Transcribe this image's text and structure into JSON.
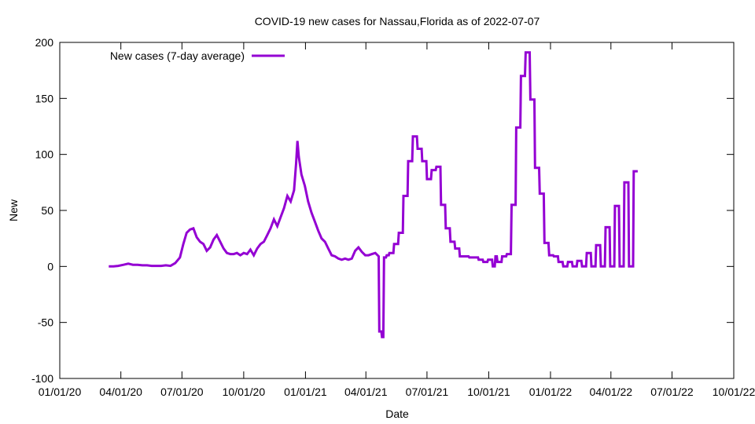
{
  "chart_data": {
    "type": "line",
    "title": "COVID-19 new cases for Nassau,Florida as of 2022-07-07",
    "xlabel": "Date",
    "ylabel": "New",
    "xlim": [
      "2020-01-01",
      "2022-10-01"
    ],
    "ylim": [
      -100,
      200
    ],
    "x_ticks": [
      "01/01/20",
      "04/01/20",
      "07/01/20",
      "10/01/20",
      "01/01/21",
      "04/01/21",
      "07/01/21",
      "10/01/21",
      "01/01/22",
      "04/01/22",
      "07/01/22",
      "10/01/22"
    ],
    "x_tick_dates": [
      "2020-01-01",
      "2020-04-01",
      "2020-07-01",
      "2020-10-01",
      "2021-01-01",
      "2021-04-01",
      "2021-07-01",
      "2021-10-01",
      "2022-01-01",
      "2022-04-01",
      "2022-07-01",
      "2022-10-01"
    ],
    "y_ticks": [
      -100,
      -50,
      0,
      50,
      100,
      150,
      200
    ],
    "grid": false,
    "legend": "top-left",
    "series": [
      {
        "name": "New cases (7-day average)",
        "color": "#9400d3",
        "points": [
          [
            "2020-03-14",
            0
          ],
          [
            "2020-03-21",
            0
          ],
          [
            "2020-03-28",
            0.5
          ],
          [
            "2020-04-05",
            1.5
          ],
          [
            "2020-04-12",
            2.5
          ],
          [
            "2020-04-19",
            1.5
          ],
          [
            "2020-04-26",
            1.5
          ],
          [
            "2020-05-03",
            1
          ],
          [
            "2020-05-10",
            1
          ],
          [
            "2020-05-17",
            0.5
          ],
          [
            "2020-05-24",
            0.5
          ],
          [
            "2020-05-31",
            0.5
          ],
          [
            "2020-06-07",
            1
          ],
          [
            "2020-06-14",
            0.5
          ],
          [
            "2020-06-21",
            3
          ],
          [
            "2020-06-28",
            8
          ],
          [
            "2020-07-03",
            20
          ],
          [
            "2020-07-08",
            30
          ],
          [
            "2020-07-13",
            33
          ],
          [
            "2020-07-18",
            34
          ],
          [
            "2020-07-23",
            26
          ],
          [
            "2020-07-28",
            22
          ],
          [
            "2020-08-02",
            20
          ],
          [
            "2020-08-07",
            14
          ],
          [
            "2020-08-12",
            17
          ],
          [
            "2020-08-17",
            24
          ],
          [
            "2020-08-22",
            28
          ],
          [
            "2020-08-27",
            22
          ],
          [
            "2020-09-01",
            16
          ],
          [
            "2020-09-06",
            12
          ],
          [
            "2020-09-11",
            11
          ],
          [
            "2020-09-16",
            11
          ],
          [
            "2020-09-21",
            12
          ],
          [
            "2020-09-26",
            10
          ],
          [
            "2020-10-01",
            12
          ],
          [
            "2020-10-06",
            11
          ],
          [
            "2020-10-11",
            15
          ],
          [
            "2020-10-16",
            10
          ],
          [
            "2020-10-21",
            16
          ],
          [
            "2020-10-26",
            20
          ],
          [
            "2020-10-31",
            22
          ],
          [
            "2020-11-05",
            28
          ],
          [
            "2020-11-10",
            34
          ],
          [
            "2020-11-15",
            42
          ],
          [
            "2020-11-20",
            36
          ],
          [
            "2020-11-25",
            44
          ],
          [
            "2020-11-30",
            52
          ],
          [
            "2020-12-05",
            63
          ],
          [
            "2020-12-10",
            58
          ],
          [
            "2020-12-15",
            68
          ],
          [
            "2020-12-18",
            92
          ],
          [
            "2020-12-20",
            112
          ],
          [
            "2020-12-22",
            98
          ],
          [
            "2020-12-26",
            82
          ],
          [
            "2020-12-31",
            72
          ],
          [
            "2021-01-05",
            58
          ],
          [
            "2021-01-10",
            48
          ],
          [
            "2021-01-15",
            40
          ],
          [
            "2021-01-20",
            32
          ],
          [
            "2021-01-25",
            25
          ],
          [
            "2021-01-30",
            22
          ],
          [
            "2021-02-04",
            16
          ],
          [
            "2021-02-09",
            10
          ],
          [
            "2021-02-14",
            9
          ],
          [
            "2021-02-19",
            7
          ],
          [
            "2021-02-24",
            6
          ],
          [
            "2021-03-01",
            7
          ],
          [
            "2021-03-06",
            6
          ],
          [
            "2021-03-11",
            7
          ],
          [
            "2021-03-16",
            14
          ],
          [
            "2021-03-21",
            17
          ],
          [
            "2021-03-26",
            13
          ],
          [
            "2021-03-31",
            10
          ],
          [
            "2021-04-05",
            10
          ],
          [
            "2021-04-10",
            11
          ],
          [
            "2021-04-15",
            12
          ],
          [
            "2021-04-20",
            9
          ],
          [
            "2021-04-21",
            -58
          ],
          [
            "2021-04-24",
            -58
          ],
          [
            "2021-04-25",
            -63
          ],
          [
            "2021-04-27",
            -63
          ],
          [
            "2021-04-28",
            8
          ],
          [
            "2021-05-01",
            8
          ],
          [
            "2021-05-02",
            10
          ],
          [
            "2021-05-05",
            10
          ],
          [
            "2021-05-06",
            12
          ],
          [
            "2021-05-12",
            12
          ],
          [
            "2021-05-13",
            20
          ],
          [
            "2021-05-19",
            20
          ],
          [
            "2021-05-20",
            30
          ],
          [
            "2021-05-26",
            30
          ],
          [
            "2021-05-27",
            63
          ],
          [
            "2021-06-02",
            63
          ],
          [
            "2021-06-03",
            94
          ],
          [
            "2021-06-09",
            94
          ],
          [
            "2021-06-10",
            116
          ],
          [
            "2021-06-16",
            116
          ],
          [
            "2021-06-17",
            105
          ],
          [
            "2021-06-23",
            105
          ],
          [
            "2021-06-24",
            94
          ],
          [
            "2021-06-30",
            94
          ],
          [
            "2021-07-01",
            78
          ],
          [
            "2021-07-07",
            78
          ],
          [
            "2021-07-08",
            86
          ],
          [
            "2021-07-14",
            86
          ],
          [
            "2021-07-15",
            89
          ],
          [
            "2021-07-21",
            89
          ],
          [
            "2021-07-22",
            55
          ],
          [
            "2021-07-28",
            55
          ],
          [
            "2021-07-29",
            34
          ],
          [
            "2021-08-04",
            34
          ],
          [
            "2021-08-05",
            22
          ],
          [
            "2021-08-11",
            22
          ],
          [
            "2021-08-12",
            16
          ],
          [
            "2021-08-18",
            16
          ],
          [
            "2021-08-19",
            9
          ],
          [
            "2021-09-01",
            9
          ],
          [
            "2021-09-02",
            8
          ],
          [
            "2021-09-15",
            8
          ],
          [
            "2021-09-16",
            6
          ],
          [
            "2021-09-22",
            6
          ],
          [
            "2021-09-23",
            4
          ],
          [
            "2021-09-29",
            4
          ],
          [
            "2021-09-30",
            6
          ],
          [
            "2021-10-06",
            6
          ],
          [
            "2021-10-07",
            0
          ],
          [
            "2021-10-10",
            0
          ],
          [
            "2021-10-11",
            9
          ],
          [
            "2021-10-13",
            9
          ],
          [
            "2021-10-14",
            4
          ],
          [
            "2021-10-20",
            4
          ],
          [
            "2021-10-21",
            9
          ],
          [
            "2021-10-27",
            9
          ],
          [
            "2021-10-28",
            11
          ],
          [
            "2021-11-03",
            11
          ],
          [
            "2021-11-04",
            55
          ],
          [
            "2021-11-10",
            55
          ],
          [
            "2021-11-11",
            124
          ],
          [
            "2021-11-17",
            124
          ],
          [
            "2021-11-18",
            170
          ],
          [
            "2021-11-24",
            170
          ],
          [
            "2021-11-25",
            191
          ],
          [
            "2021-12-01",
            191
          ],
          [
            "2021-12-02",
            149
          ],
          [
            "2021-12-08",
            149
          ],
          [
            "2021-12-09",
            88
          ],
          [
            "2021-12-15",
            88
          ],
          [
            "2021-12-16",
            65
          ],
          [
            "2021-12-22",
            65
          ],
          [
            "2021-12-23",
            21
          ],
          [
            "2021-12-29",
            21
          ],
          [
            "2021-12-30",
            10
          ],
          [
            "2022-01-05",
            10
          ],
          [
            "2022-01-06",
            9
          ],
          [
            "2022-01-12",
            9
          ],
          [
            "2022-01-13",
            4
          ],
          [
            "2022-01-19",
            4
          ],
          [
            "2022-01-20",
            0
          ],
          [
            "2022-01-26",
            0
          ],
          [
            "2022-01-27",
            4
          ],
          [
            "2022-02-02",
            4
          ],
          [
            "2022-02-03",
            0
          ],
          [
            "2022-02-09",
            0
          ],
          [
            "2022-02-10",
            5
          ],
          [
            "2022-02-16",
            5
          ],
          [
            "2022-02-17",
            0
          ],
          [
            "2022-02-23",
            0
          ],
          [
            "2022-02-24",
            12
          ],
          [
            "2022-03-02",
            12
          ],
          [
            "2022-03-03",
            0
          ],
          [
            "2022-03-09",
            0
          ],
          [
            "2022-03-10",
            19
          ],
          [
            "2022-03-16",
            19
          ],
          [
            "2022-03-17",
            0
          ],
          [
            "2022-03-23",
            0
          ],
          [
            "2022-03-24",
            35
          ],
          [
            "2022-03-30",
            35
          ],
          [
            "2022-03-31",
            0
          ],
          [
            "2022-04-06",
            0
          ],
          [
            "2022-04-07",
            54
          ],
          [
            "2022-04-13",
            54
          ],
          [
            "2022-04-14",
            0
          ],
          [
            "2022-04-20",
            0
          ],
          [
            "2022-04-21",
            75
          ],
          [
            "2022-04-27",
            75
          ],
          [
            "2022-04-28",
            0
          ],
          [
            "2022-05-04",
            0
          ],
          [
            "2022-05-05",
            85
          ],
          [
            "2022-05-11",
            85
          ]
        ]
      }
    ]
  }
}
